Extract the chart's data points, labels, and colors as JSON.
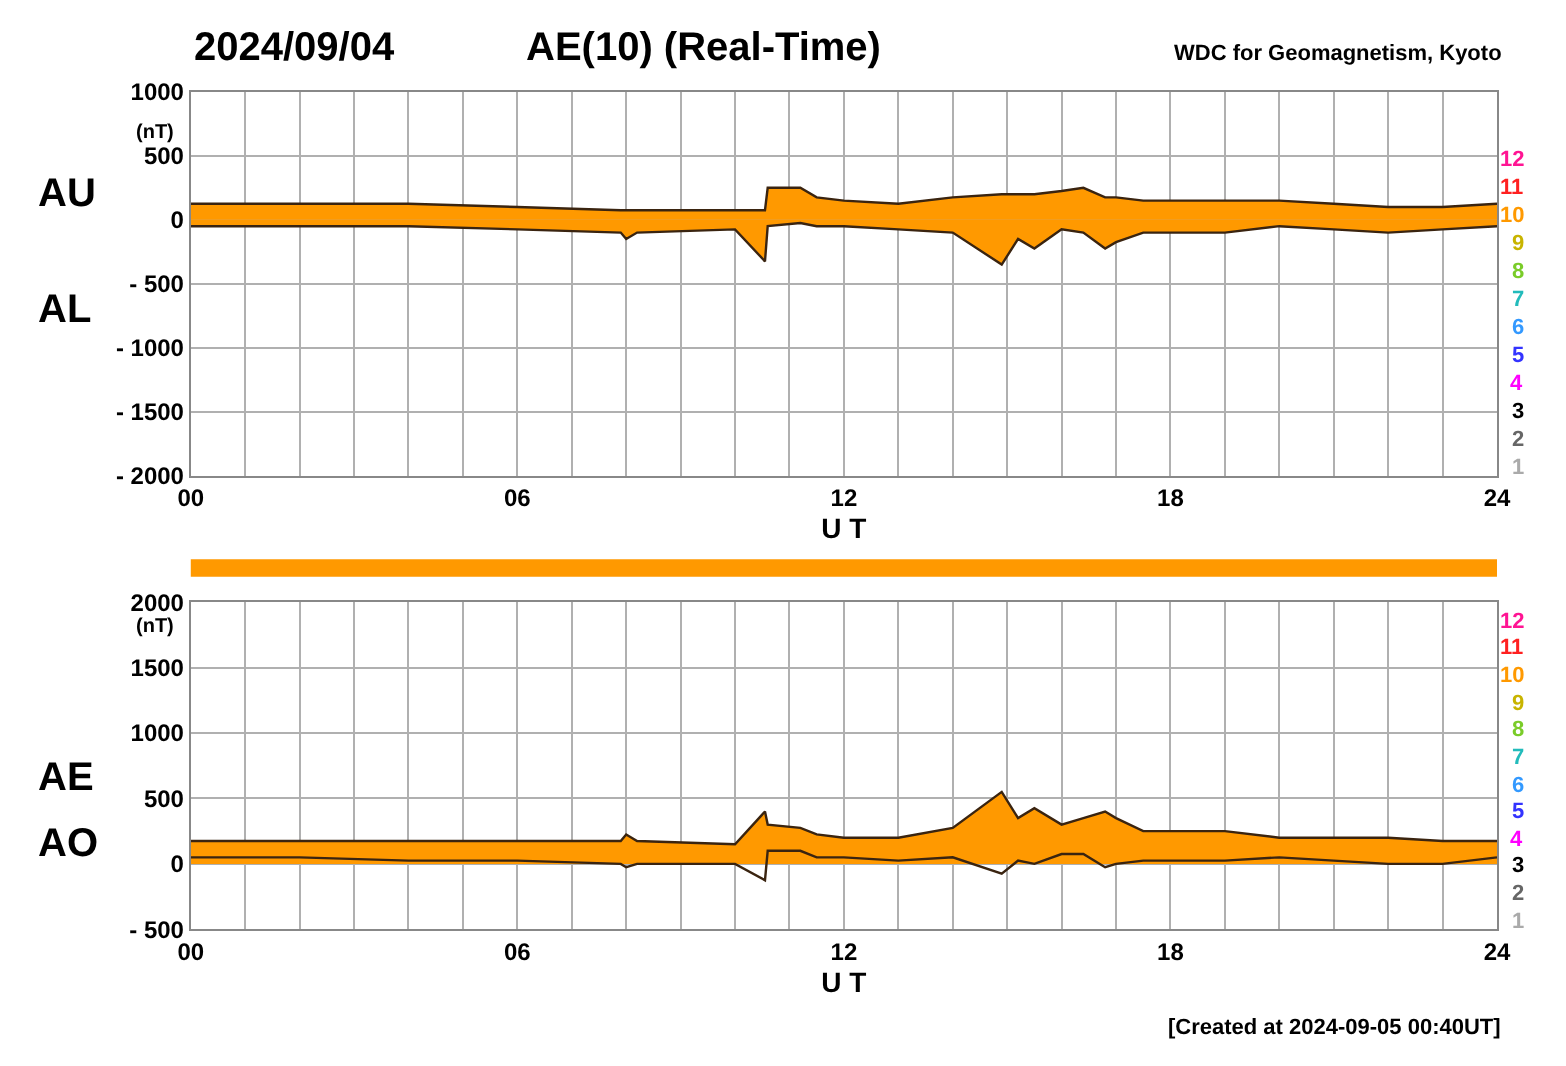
{
  "chart_data": [
    {
      "type": "area",
      "title": "2024/09/04",
      "subtitle": "AE(10) (Real-Time)",
      "annotations": [
        "12",
        "11",
        "10",
        "9",
        "8",
        "7",
        "6",
        "5",
        "4",
        "3",
        "2",
        "1",
        "WDC for Geomagnetism, Kyoto"
      ],
      "xlabel": "U T",
      "ylabel": "(nT)",
      "x": [
        0,
        2,
        4,
        6,
        7.9,
        8.0,
        8.2,
        10,
        10.55,
        10.6,
        11.2,
        11.5,
        12,
        13,
        14,
        14.9,
        15.2,
        15.5,
        16,
        16.4,
        16.8,
        17,
        17.5,
        18,
        19,
        20,
        21,
        22,
        23,
        24
      ],
      "series": [
        {
          "name": "AU",
          "color": "#ff9900",
          "values": [
            125,
            125,
            125,
            100,
            75,
            75,
            75,
            75,
            75,
            250,
            250,
            175,
            150,
            125,
            175,
            200,
            200,
            200,
            225,
            250,
            175,
            175,
            150,
            150,
            150,
            150,
            125,
            100,
            100,
            125
          ]
        },
        {
          "name": "AL",
          "color": "#ff9900",
          "values": [
            -50,
            -50,
            -50,
            -75,
            -100,
            -150,
            -100,
            -75,
            -325,
            -50,
            -25,
            -50,
            -50,
            -75,
            -100,
            -350,
            -150,
            -225,
            -75,
            -100,
            -225,
            -175,
            -100,
            -100,
            -100,
            -50,
            -75,
            -100,
            -75,
            -50
          ]
        }
      ],
      "xlim": [
        0,
        24
      ],
      "xticks": [
        {
          "value": 0,
          "label": "00"
        },
        {
          "value": 1,
          "label": null
        },
        {
          "value": 2,
          "label": null
        },
        {
          "value": 3,
          "label": null
        },
        {
          "value": 4,
          "label": null
        },
        {
          "value": 5,
          "label": null
        },
        {
          "value": 6,
          "label": "06"
        },
        {
          "value": 7,
          "label": null
        },
        {
          "value": 8,
          "label": null
        },
        {
          "value": 9,
          "label": null
        },
        {
          "value": 10,
          "label": null
        },
        {
          "value": 11,
          "label": null
        },
        {
          "value": 12,
          "label": "12"
        },
        {
          "value": 13,
          "label": null
        },
        {
          "value": 14,
          "label": null
        },
        {
          "value": 15,
          "label": null
        },
        {
          "value": 16,
          "label": null
        },
        {
          "value": 17,
          "label": null
        },
        {
          "value": 18,
          "label": "18"
        },
        {
          "value": 19,
          "label": null
        },
        {
          "value": 20,
          "label": null
        },
        {
          "value": 21,
          "label": null
        },
        {
          "value": 22,
          "label": null
        },
        {
          "value": 23,
          "label": null
        },
        {
          "value": 24,
          "label": "24"
        }
      ],
      "ylim": [
        -2000,
        1000
      ],
      "yticks": [
        1000,
        500,
        0,
        {
          "value": -500,
          "label": "- 500"
        },
        {
          "value": -1000,
          "label": "- 1000"
        },
        {
          "value": -1500,
          "label": "- 1500"
        },
        {
          "value": -2000,
          "label": "- 2000"
        }
      ],
      "grid": true
    },
    {
      "type": "area",
      "annotations": [
        "12",
        "11",
        "10",
        "9",
        "8",
        "7",
        "6",
        "5",
        "4",
        "3",
        "2",
        "1",
        "[Created at 2024-09-05 00:40UT]"
      ],
      "xlabel": "U T",
      "ylabel": "(nT)",
      "x": [
        0,
        2,
        4,
        6,
        7.9,
        8.0,
        8.2,
        10,
        10.55,
        10.6,
        11.2,
        11.5,
        12,
        13,
        14,
        14.9,
        15.2,
        15.5,
        16,
        16.4,
        16.8,
        17,
        17.5,
        18,
        19,
        20,
        21,
        22,
        23,
        24
      ],
      "series": [
        {
          "name": "AE",
          "color": "#ff9900",
          "values": [
            175,
            175,
            175,
            175,
            175,
            225,
            175,
            150,
            400,
            300,
            275,
            225,
            200,
            200,
            275,
            550,
            350,
            425,
            300,
            350,
            400,
            350,
            250,
            250,
            250,
            200,
            200,
            200,
            175,
            175
          ]
        },
        {
          "name": "AO",
          "type": "line",
          "color": "#3a2410",
          "values": [
            50,
            50,
            25,
            25,
            0,
            -25,
            0,
            0,
            -125,
            100,
            100,
            50,
            50,
            25,
            50,
            -75,
            25,
            0,
            75,
            75,
            -25,
            0,
            25,
            25,
            25,
            50,
            25,
            0,
            0,
            50
          ]
        }
      ],
      "xlim": [
        0,
        24
      ],
      "xticks": [
        {
          "value": 0,
          "label": "00"
        },
        {
          "value": 1,
          "label": null
        },
        {
          "value": 2,
          "label": null
        },
        {
          "value": 3,
          "label": null
        },
        {
          "value": 4,
          "label": null
        },
        {
          "value": 5,
          "label": null
        },
        {
          "value": 6,
          "label": "06"
        },
        {
          "value": 7,
          "label": null
        },
        {
          "value": 8,
          "label": null
        },
        {
          "value": 9,
          "label": null
        },
        {
          "value": 10,
          "label": null
        },
        {
          "value": 11,
          "label": null
        },
        {
          "value": 12,
          "label": "12"
        },
        {
          "value": 13,
          "label": null
        },
        {
          "value": 14,
          "label": null
        },
        {
          "value": 15,
          "label": null
        },
        {
          "value": 16,
          "label": null
        },
        {
          "value": 17,
          "label": null
        },
        {
          "value": 18,
          "label": "18"
        },
        {
          "value": 19,
          "label": null
        },
        {
          "value": 20,
          "label": null
        },
        {
          "value": 21,
          "label": null
        },
        {
          "value": 22,
          "label": null
        },
        {
          "value": 23,
          "label": null
        },
        {
          "value": 24,
          "label": "24"
        }
      ],
      "ylim": [
        -500,
        2000
      ],
      "yticks": [
        2000,
        1500,
        1000,
        500,
        0,
        {
          "value": -500,
          "label": "- 500"
        }
      ],
      "grid": true
    }
  ]
}
